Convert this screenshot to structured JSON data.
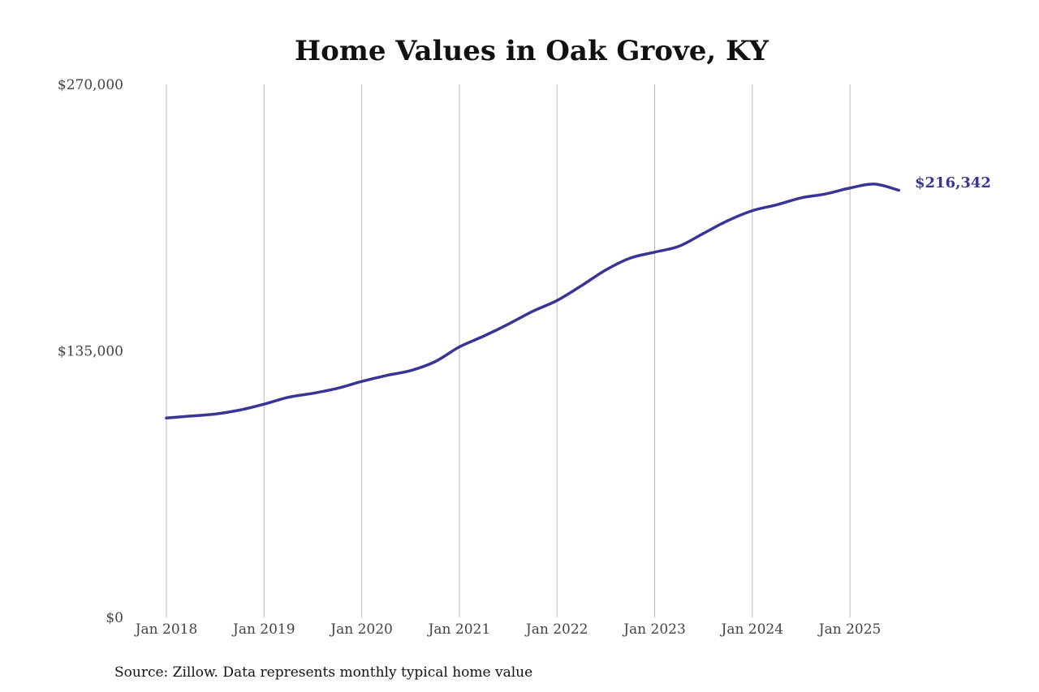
{
  "chart_data": {
    "type": "line",
    "title": "Home Values in Oak Grove, KY",
    "subtitle": "",
    "xlabel": "",
    "ylabel": "",
    "ylim": [
      0,
      270000
    ],
    "y_ticks": [
      0,
      135000,
      270000
    ],
    "y_tick_labels": [
      "$0",
      "$135,000",
      "$270,000"
    ],
    "x_tick_labels": [
      "Jan 2018",
      "Jan 2019",
      "Jan 2020",
      "Jan 2021",
      "Jan 2022",
      "Jan 2023",
      "Jan 2024",
      "Jan 2025"
    ],
    "grid": "vertical",
    "line_color": "#3a3494",
    "end_label": "$216,342",
    "series": [
      {
        "x": [
          "2018-01",
          "2018-04",
          "2018-07",
          "2018-10",
          "2019-01",
          "2019-04",
          "2019-07",
          "2019-10",
          "2020-01",
          "2020-04",
          "2020-07",
          "2020-10",
          "2021-01",
          "2021-04",
          "2021-07",
          "2021-10",
          "2022-01",
          "2022-04",
          "2022-07",
          "2022-10",
          "2023-01",
          "2023-04",
          "2023-07",
          "2023-10",
          "2024-01",
          "2024-04",
          "2024-07",
          "2024-10",
          "2025-01",
          "2025-04",
          "2025-07"
        ],
        "values": [
          101000,
          102000,
          103000,
          105000,
          108000,
          111500,
          113500,
          116000,
          119500,
          122500,
          125000,
          129500,
          137000,
          142500,
          148500,
          155000,
          160500,
          168000,
          176000,
          182000,
          185000,
          188000,
          194500,
          201000,
          206000,
          209000,
          212500,
          214500,
          217500,
          219500,
          216342
        ]
      }
    ]
  },
  "source_note": "Source: Zillow. Data represents monthly typical home value"
}
